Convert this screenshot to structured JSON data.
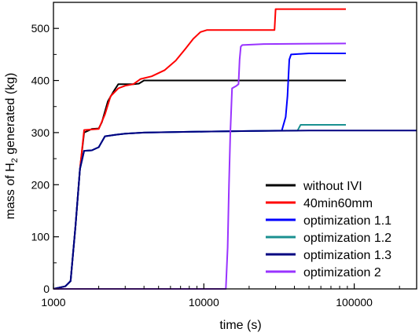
{
  "chart_data": {
    "type": "line",
    "xlabel": "time (s)",
    "ylabel_parts": [
      "mass of H",
      "2",
      " generated (kg)"
    ],
    "x_scale": "log",
    "xlim": [
      1000,
      260000
    ],
    "ylim": [
      0,
      550
    ],
    "x_ticks": [
      1000,
      10000,
      100000
    ],
    "x_tick_labels": [
      "1000",
      "10000",
      "100000"
    ],
    "y_ticks": [
      0,
      100,
      200,
      300,
      400,
      500
    ],
    "y_tick_labels": [
      "0",
      "100",
      "200",
      "300",
      "400",
      "500"
    ],
    "grid": false,
    "legend_position": "bottom-right",
    "series": [
      {
        "name": "without IVI",
        "color": "#000000",
        "points": [
          [
            1000,
            0
          ],
          [
            1200,
            5
          ],
          [
            1300,
            15
          ],
          [
            1400,
            120
          ],
          [
            1500,
            230
          ],
          [
            1600,
            300
          ],
          [
            1800,
            307
          ],
          [
            2000,
            308
          ],
          [
            2100,
            320
          ],
          [
            2300,
            360
          ],
          [
            2500,
            378
          ],
          [
            2700,
            393
          ],
          [
            3000,
            393
          ],
          [
            3400,
            393
          ],
          [
            3700,
            394
          ],
          [
            4000,
            400
          ],
          [
            5000,
            400
          ],
          [
            10000,
            400
          ],
          [
            30000,
            400
          ],
          [
            88000,
            400
          ]
        ]
      },
      {
        "name": "40min60mm",
        "color": "#ff0000",
        "points": [
          [
            1000,
            0
          ],
          [
            1200,
            5
          ],
          [
            1300,
            15
          ],
          [
            1400,
            120
          ],
          [
            1500,
            230
          ],
          [
            1600,
            305
          ],
          [
            2000,
            307
          ],
          [
            2200,
            335
          ],
          [
            2400,
            370
          ],
          [
            2700,
            385
          ],
          [
            3000,
            390
          ],
          [
            3400,
            393
          ],
          [
            3800,
            403
          ],
          [
            4500,
            408
          ],
          [
            5500,
            420
          ],
          [
            6500,
            438
          ],
          [
            7500,
            460
          ],
          [
            8500,
            480
          ],
          [
            9500,
            493
          ],
          [
            10500,
            497
          ],
          [
            15000,
            497
          ],
          [
            20000,
            497
          ],
          [
            29500,
            497
          ],
          [
            30000,
            537
          ],
          [
            50000,
            537
          ],
          [
            88000,
            537
          ]
        ]
      },
      {
        "name": "optimization 1.1",
        "color": "#0000ff",
        "points": [
          [
            1000,
            0
          ],
          [
            1200,
            5
          ],
          [
            1300,
            15
          ],
          [
            1400,
            120
          ],
          [
            1500,
            230
          ],
          [
            1600,
            265
          ],
          [
            1800,
            266
          ],
          [
            2000,
            272
          ],
          [
            2200,
            293
          ],
          [
            2600,
            296
          ],
          [
            3000,
            298
          ],
          [
            4000,
            300
          ],
          [
            10000,
            302
          ],
          [
            20000,
            303
          ],
          [
            33000,
            304
          ],
          [
            35000,
            330
          ],
          [
            36000,
            370
          ],
          [
            37000,
            440
          ],
          [
            38000,
            450
          ],
          [
            50000,
            452
          ],
          [
            88000,
            452
          ]
        ]
      },
      {
        "name": "optimization 1.2",
        "color": "#1a9090",
        "points": [
          [
            1000,
            0
          ],
          [
            1200,
            5
          ],
          [
            1300,
            15
          ],
          [
            1400,
            120
          ],
          [
            1500,
            230
          ],
          [
            1600,
            265
          ],
          [
            1800,
            266
          ],
          [
            2000,
            272
          ],
          [
            2200,
            293
          ],
          [
            2600,
            296
          ],
          [
            3000,
            298
          ],
          [
            4000,
            300
          ],
          [
            10000,
            302
          ],
          [
            20000,
            303
          ],
          [
            42000,
            304
          ],
          [
            44000,
            315
          ],
          [
            88000,
            315
          ]
        ]
      },
      {
        "name": "optimization 1.3",
        "color": "#000080",
        "points": [
          [
            1000,
            0
          ],
          [
            1200,
            5
          ],
          [
            1300,
            15
          ],
          [
            1400,
            120
          ],
          [
            1500,
            230
          ],
          [
            1600,
            265
          ],
          [
            1800,
            266
          ],
          [
            2000,
            272
          ],
          [
            2200,
            293
          ],
          [
            2600,
            296
          ],
          [
            3000,
            298
          ],
          [
            4000,
            300
          ],
          [
            10000,
            302
          ],
          [
            20000,
            303
          ],
          [
            50000,
            304
          ],
          [
            260000,
            304
          ]
        ]
      },
      {
        "name": "optimization 2",
        "color": "#9933ff",
        "points": [
          [
            1000,
            0
          ],
          [
            14000,
            0
          ],
          [
            14400,
            80
          ],
          [
            14700,
            200
          ],
          [
            15000,
            300
          ],
          [
            15400,
            385
          ],
          [
            16500,
            390
          ],
          [
            17000,
            393
          ],
          [
            17300,
            440
          ],
          [
            17600,
            465
          ],
          [
            18000,
            468
          ],
          [
            25000,
            470
          ],
          [
            88000,
            471
          ]
        ]
      }
    ]
  }
}
